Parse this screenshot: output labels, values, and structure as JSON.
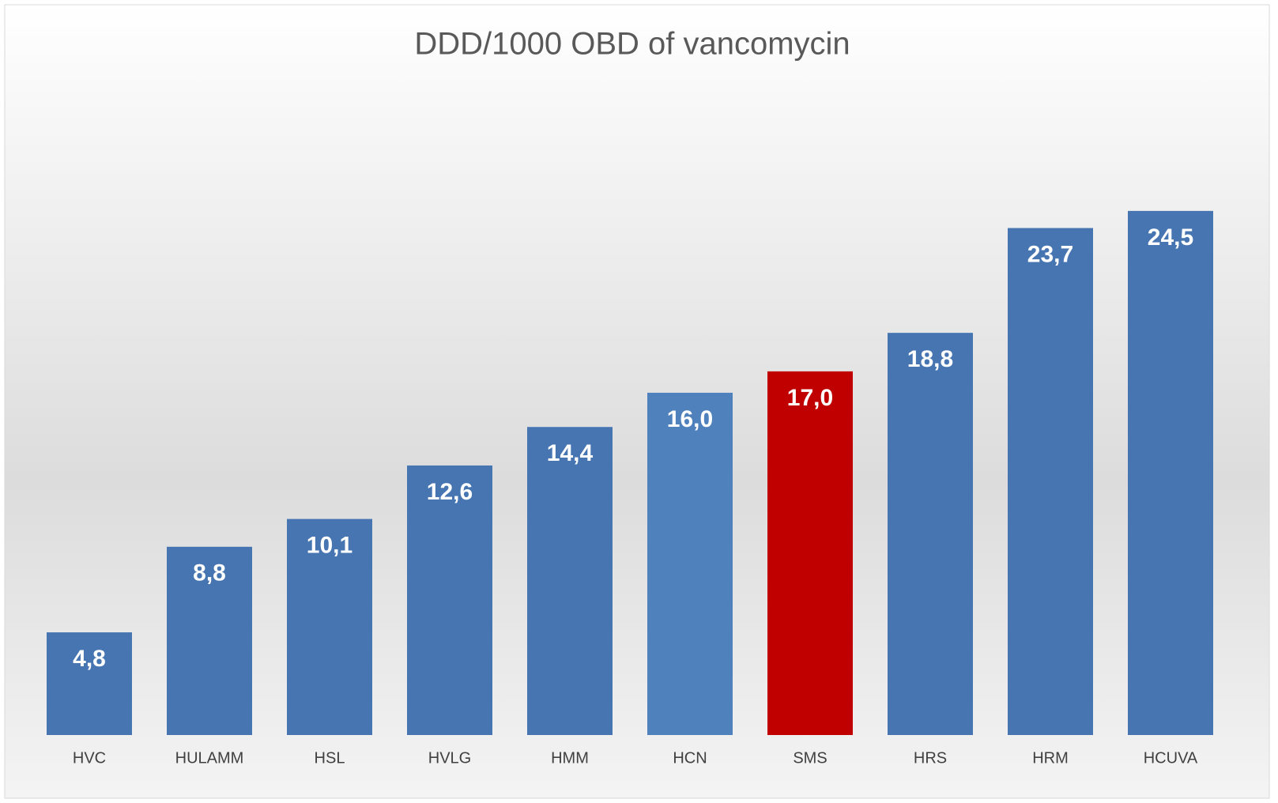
{
  "chart_data": {
    "type": "bar",
    "title": "DDD/1000 OBD of vancomycin",
    "categories": [
      "HVC",
      "HULAMM",
      "HSL",
      "HVLG",
      "HMM",
      "HCN",
      "SMS",
      "HRS",
      "HRM",
      "HCUVA"
    ],
    "values": [
      4.8,
      8.8,
      10.1,
      12.6,
      14.4,
      16.0,
      17.0,
      18.8,
      23.7,
      24.5
    ],
    "value_labels": [
      "4,8",
      "8,8",
      "10,1",
      "12,6",
      "14,4",
      "16,0",
      "17,0",
      "18,8",
      "23,7",
      "24,5"
    ],
    "colors": [
      "#4675b2",
      "#4675b2",
      "#4675b2",
      "#4675b2",
      "#4675b2",
      "#4f81bd",
      "#c00000",
      "#4675b2",
      "#4675b2",
      "#4675b2"
    ],
    "ylim": [
      0,
      30
    ],
    "grid": false
  }
}
